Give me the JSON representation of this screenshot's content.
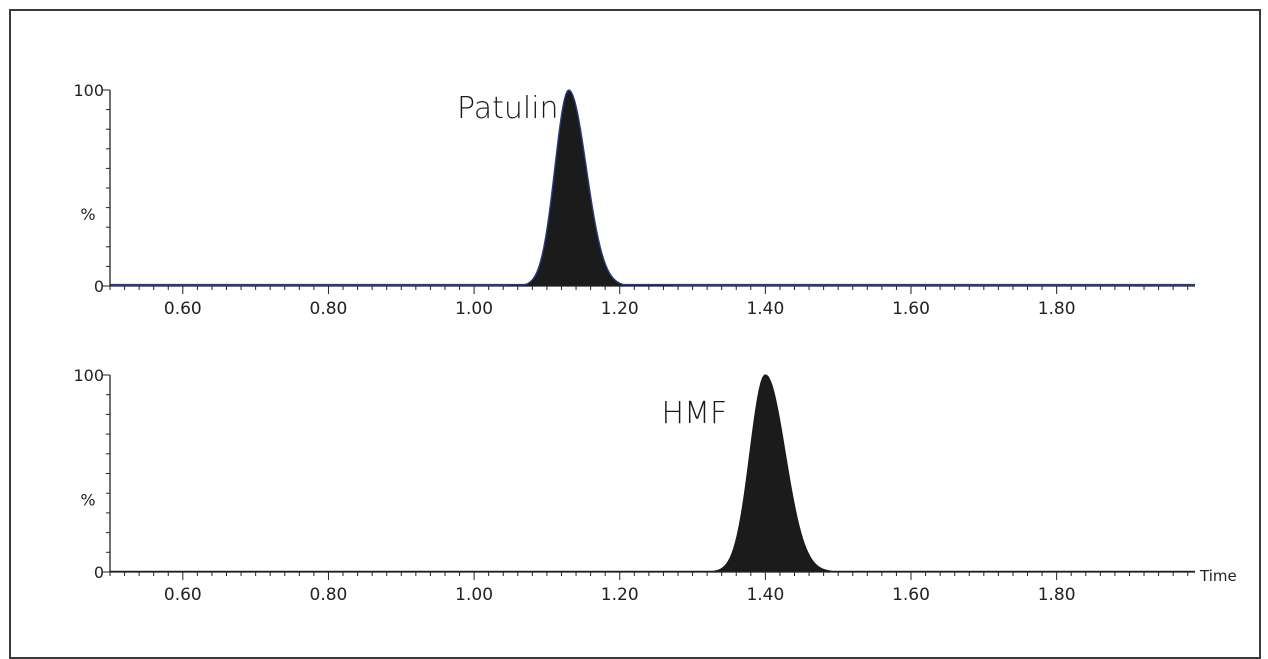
{
  "chart_data": [
    {
      "type": "line",
      "peak_label": "Patulin",
      "xlabel": "",
      "ylabel": "%",
      "xlim": [
        0.5,
        1.99
      ],
      "ylim": [
        0,
        100
      ],
      "x_ticks": [
        "0.60",
        "0.80",
        "1.00",
        "1.20",
        "1.40",
        "1.60",
        "1.80"
      ],
      "y_ticks": [
        "0",
        "100"
      ],
      "baseline": 0.7,
      "series": [
        {
          "peak_center": 1.13,
          "peak_height": 100,
          "sigma_left": 0.019,
          "sigma_right": 0.024
        }
      ],
      "fill": "#1b1b1b",
      "line_color": "#2b3a7a"
    },
    {
      "type": "line",
      "peak_label": "HMF",
      "xlabel": "Time",
      "ylabel": "%",
      "xlim": [
        0.5,
        1.99
      ],
      "ylim": [
        0,
        100
      ],
      "x_ticks": [
        "0.60",
        "0.80",
        "1.00",
        "1.20",
        "1.40",
        "1.60",
        "1.80"
      ],
      "y_ticks": [
        "0",
        "100"
      ],
      "baseline": 0.3,
      "series": [
        {
          "peak_center": 1.4,
          "peak_height": 100,
          "sigma_left": 0.021,
          "sigma_right": 0.027
        }
      ],
      "fill": "#1b1b1b",
      "line_color": "#1b1b1b"
    }
  ]
}
